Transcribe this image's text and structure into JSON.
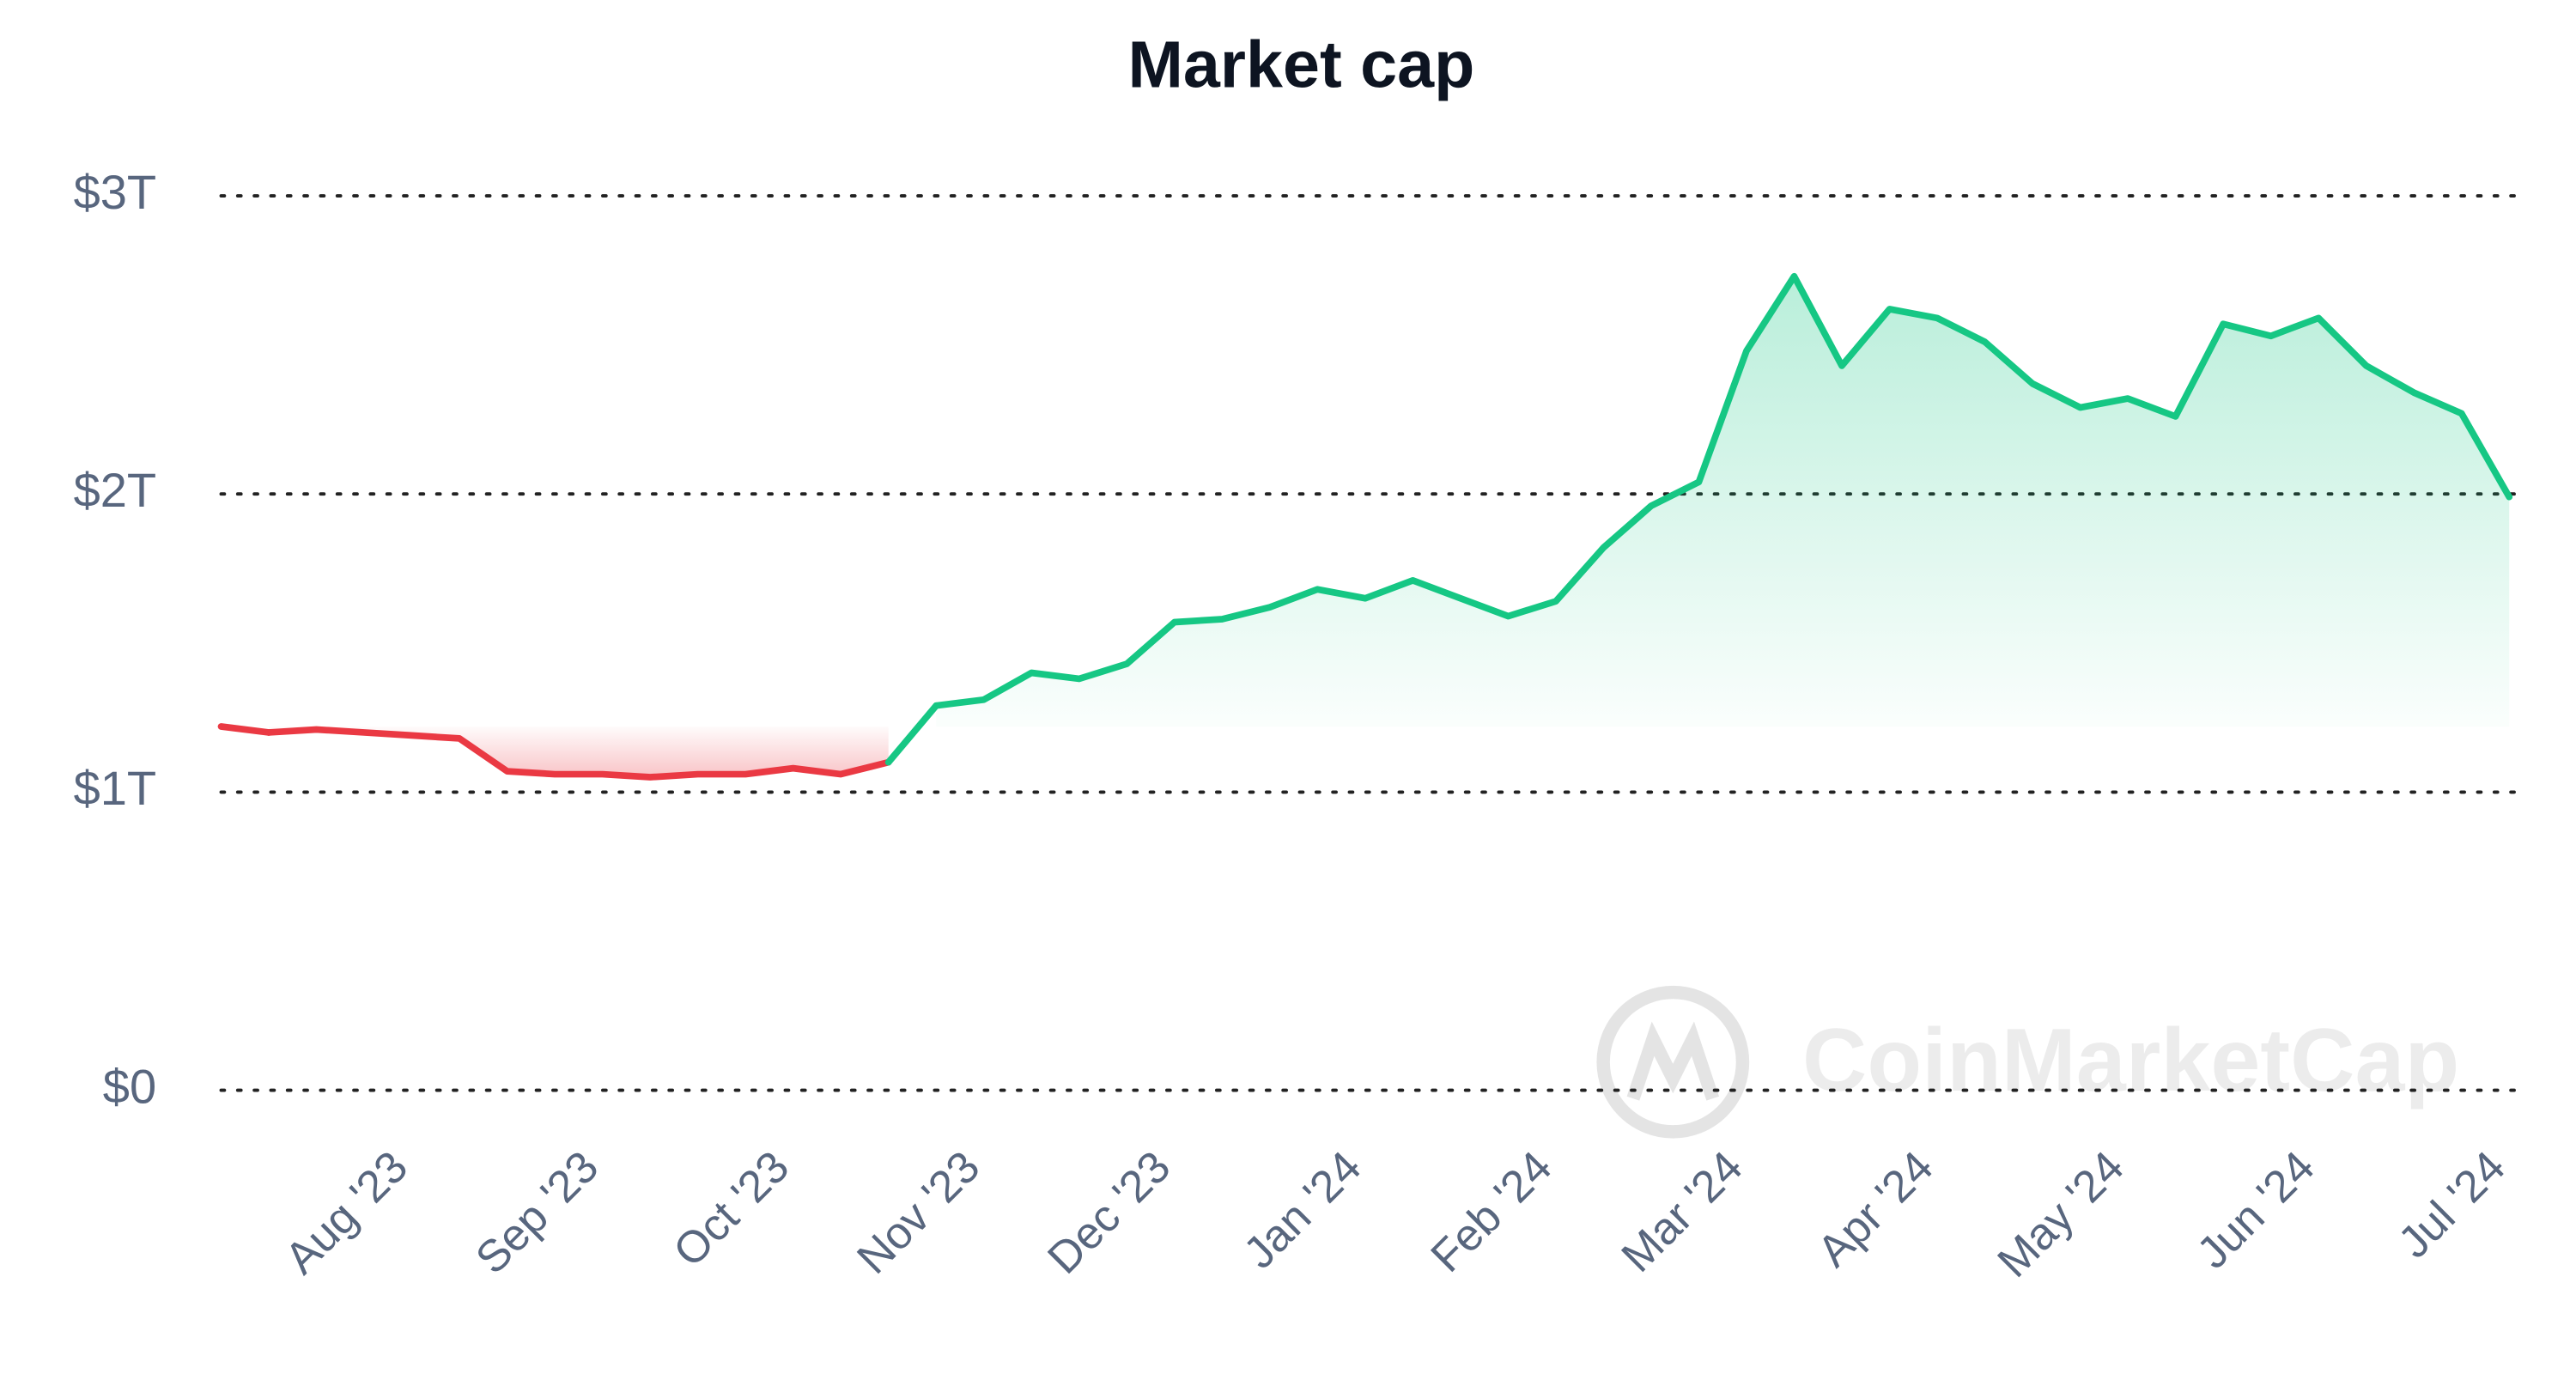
{
  "chart_data": {
    "type": "line",
    "title": "Market cap",
    "watermark": "CoinMarketCap",
    "categories": [
      null,
      null,
      null,
      null,
      "Aug '23",
      null,
      null,
      null,
      "Sep '23",
      null,
      null,
      null,
      "Oct '23",
      null,
      null,
      null,
      "Nov '23",
      null,
      null,
      null,
      "Dec '23",
      null,
      null,
      null,
      "Jan '24",
      null,
      null,
      null,
      "Feb '24",
      null,
      null,
      null,
      "Mar '24",
      null,
      null,
      null,
      "Apr '24",
      null,
      null,
      null,
      "May '24",
      null,
      null,
      null,
      "Jun '24",
      null,
      null,
      null,
      "Jul '24"
    ],
    "values": [
      1.22,
      1.2,
      1.21,
      1.2,
      1.19,
      1.18,
      1.07,
      1.06,
      1.06,
      1.05,
      1.06,
      1.06,
      1.08,
      1.06,
      1.1,
      1.29,
      1.31,
      1.4,
      1.38,
      1.43,
      1.57,
      1.58,
      1.62,
      1.68,
      1.65,
      1.71,
      1.65,
      1.59,
      1.64,
      1.82,
      1.96,
      2.04,
      2.48,
      2.73,
      2.43,
      2.62,
      2.59,
      2.51,
      2.37,
      2.29,
      2.32,
      2.26,
      2.57,
      2.53,
      2.59,
      2.43,
      2.34,
      2.27,
      1.99
    ],
    "colors": {
      "above": "#16c784",
      "below": "#ea3943"
    },
    "ylim": [
      0,
      3
    ],
    "yticks": [
      {
        "value": 0,
        "label": "$0"
      },
      {
        "value": 1,
        "label": "$1T"
      },
      {
        "value": 2,
        "label": "$2T"
      },
      {
        "value": 3,
        "label": "$3T"
      }
    ],
    "grid": true
  }
}
